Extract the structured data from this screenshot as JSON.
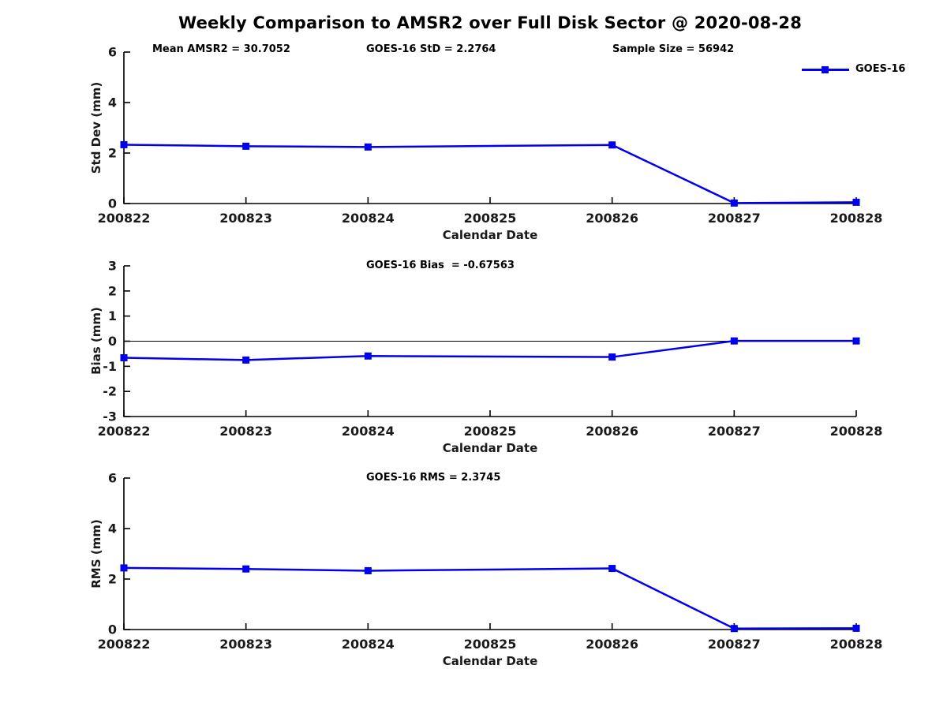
{
  "title": "Weekly Comparison to AMSR2 over Full Disk Sector @ 2020-08-28",
  "legend": {
    "label": "GOES-16",
    "position": "top-right",
    "color": "#0000EE"
  },
  "colors": {
    "line": "#0000EE",
    "axis": "#000000",
    "tick_label": "#1a1a1a"
  },
  "chart_data": [
    {
      "name": "std-dev",
      "type": "line",
      "ylabel": "Std Dev (mm)",
      "xlabel": "Calendar Date",
      "ylim": [
        0,
        6
      ],
      "yticks": [
        0,
        2,
        4,
        6
      ],
      "xtick_labels": [
        "200822",
        "200823",
        "200824",
        "200825",
        "200826",
        "200827",
        "200828"
      ],
      "grid": false,
      "zero_line": false,
      "annotations": [
        "Mean AMSR2 = 30.7052",
        "GOES-16 StD = 2.2764",
        "Sample Size = 56942"
      ],
      "series": [
        {
          "name": "GOES-16",
          "x": [
            "200822",
            "200823",
            "200824",
            "200826",
            "200827",
            "200828"
          ],
          "y": [
            2.33,
            2.27,
            2.24,
            2.32,
            0.02,
            0.05
          ]
        }
      ]
    },
    {
      "name": "bias",
      "type": "line",
      "ylabel": "Bias (mm)",
      "xlabel": "Calendar Date",
      "ylim": [
        -3,
        3
      ],
      "yticks": [
        -3,
        -2,
        -1,
        0,
        1,
        2,
        3
      ],
      "xtick_labels": [
        "200822",
        "200823",
        "200824",
        "200825",
        "200826",
        "200827",
        "200828"
      ],
      "grid": false,
      "zero_line": true,
      "annotations": [
        "GOES-16 Bias  = -0.67563"
      ],
      "series": [
        {
          "name": "GOES-16",
          "x": [
            "200822",
            "200823",
            "200824",
            "200826",
            "200827",
            "200828"
          ],
          "y": [
            -0.66,
            -0.75,
            -0.59,
            -0.63,
            0.01,
            0.01
          ]
        }
      ]
    },
    {
      "name": "rms",
      "type": "line",
      "ylabel": "RMS (mm)",
      "xlabel": "Calendar Date",
      "ylim": [
        0,
        6
      ],
      "yticks": [
        0,
        2,
        4,
        6
      ],
      "xtick_labels": [
        "200822",
        "200823",
        "200824",
        "200825",
        "200826",
        "200827",
        "200828"
      ],
      "grid": false,
      "zero_line": false,
      "annotations": [
        "GOES-16 RMS = 2.3745"
      ],
      "series": [
        {
          "name": "GOES-16",
          "x": [
            "200822",
            "200823",
            "200824",
            "200826",
            "200827",
            "200828"
          ],
          "y": [
            2.44,
            2.4,
            2.33,
            2.42,
            0.04,
            0.05
          ]
        }
      ]
    }
  ]
}
